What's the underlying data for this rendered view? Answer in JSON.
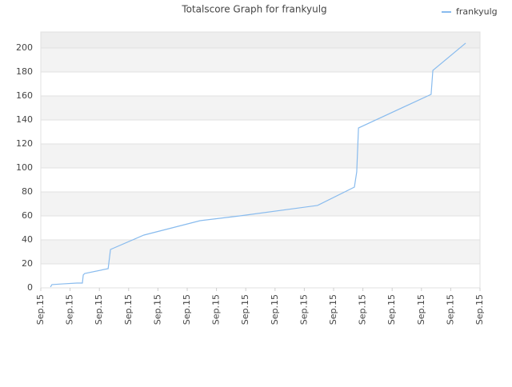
{
  "chart_data": {
    "type": "line",
    "title": "Totalscore Graph for frankyulg",
    "x": [
      0.33,
      0.38,
      0.74,
      1.23,
      1.42,
      1.45,
      1.5,
      2.3,
      2.38,
      3.52,
      5.44,
      6.8,
      9.45,
      10.71,
      10.79,
      10.85,
      13.33,
      13.39,
      14.51
    ],
    "series": [
      {
        "name": "frankyulg",
        "color": "#88bbee",
        "values": [
          0.7,
          2.7,
          3.3,
          4,
          4,
          10.7,
          12,
          16,
          32,
          44,
          56,
          60,
          68.7,
          84,
          96.7,
          133.3,
          161.3,
          181.3,
          204
        ]
      }
    ],
    "xlim": [
      0,
      15
    ],
    "xticks": [
      {
        "value": 0,
        "label": "Sep.15"
      },
      {
        "value": 1,
        "label": "Sep.15"
      },
      {
        "value": 2,
        "label": "Sep.15"
      },
      {
        "value": 3,
        "label": "Sep.15"
      },
      {
        "value": 4,
        "label": "Sep.15"
      },
      {
        "value": 5,
        "label": "Sep.15"
      },
      {
        "value": 6,
        "label": "Sep.15"
      },
      {
        "value": 7,
        "label": "Sep.15"
      },
      {
        "value": 8,
        "label": "Sep.15"
      },
      {
        "value": 9,
        "label": "Sep.15"
      },
      {
        "value": 10,
        "label": "Sep.15"
      },
      {
        "value": 11,
        "label": "Sep.15"
      },
      {
        "value": 12,
        "label": "Sep.15"
      },
      {
        "value": 13,
        "label": "Sep.15"
      },
      {
        "value": 14,
        "label": "Sep.15"
      },
      {
        "value": 15,
        "label": "Sep.15"
      }
    ],
    "ylim": [
      0,
      213.3
    ],
    "yticks": [
      0,
      20,
      40,
      60,
      80,
      100,
      120,
      140,
      160,
      180,
      200
    ],
    "grid": true,
    "legend": "top-right"
  }
}
